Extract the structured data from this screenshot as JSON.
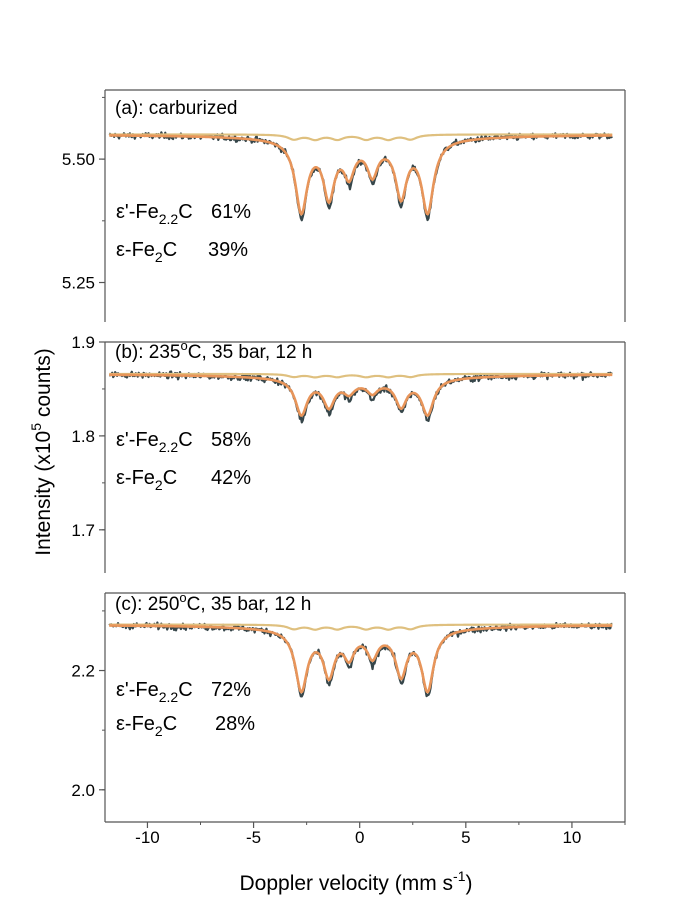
{
  "chart_data": {
    "type": "line",
    "xlabel": "Doppler velocity (mm s",
    "xlabel_sup": "-1",
    "xlabel_close": ")",
    "ylabel": "Intensity (x10",
    "ylabel_sup": "5",
    "ylabel_tail": " counts)",
    "xlim": [
      -12,
      12.5
    ],
    "x_ticks": [
      -10,
      -5,
      0,
      5,
      10
    ],
    "x_tick_labels": [
      "-10",
      "-5",
      "0",
      "5",
      "10"
    ],
    "colors": {
      "data": "#36464a",
      "fit_total": "#e8955a",
      "fit_component": "#dfc07f"
    },
    "panels": [
      {
        "label": "(a): carburized",
        "ylim": [
          5.17,
          5.64
        ],
        "y_ticks": [
          5.25,
          5.5
        ],
        "y_tick_labels": [
          "5.25",
          "5.50"
        ],
        "baseline": 5.55,
        "components": [
          {
            "pre": "ε'-Fe",
            "sub": "2.2",
            "post": "C",
            "pct": "61%"
          },
          {
            "pre": "ε-Fe",
            "sub": "2",
            "post": "C",
            "pct": "39%"
          }
        ],
        "peaks": [
          {
            "x": -2.75,
            "depth": 0.305,
            "width": 0.34
          },
          {
            "x": -1.45,
            "depth": 0.23,
            "width": 0.32
          },
          {
            "x": -0.5,
            "depth": 0.13,
            "width": 0.3
          },
          {
            "x": 0.6,
            "depth": 0.13,
            "width": 0.3
          },
          {
            "x": 1.95,
            "depth": 0.23,
            "width": 0.32
          },
          {
            "x": 3.2,
            "depth": 0.305,
            "width": 0.34
          }
        ],
        "sextet_depth": 0.02
      },
      {
        "label": "(b): 235",
        "label_sup": "o",
        "label_tail": "C, 35 bar, 12 h",
        "ylim": [
          1.654,
          1.9
        ],
        "y_ticks": [
          1.7,
          1.8,
          1.9
        ],
        "y_tick_labels": [
          "1.7",
          "1.8",
          "1.9"
        ],
        "baseline": 1.866,
        "components": [
          {
            "pre": "ε'-Fe",
            "sub": "2.2",
            "post": "C",
            "pct": "58%"
          },
          {
            "pre": "ε-Fe",
            "sub": "2",
            "post": "C",
            "pct": "42%"
          }
        ],
        "peaks": [
          {
            "x": -2.75,
            "depth": 0.152,
            "width": 0.34
          },
          {
            "x": -1.45,
            "depth": 0.11,
            "width": 0.32
          },
          {
            "x": -0.5,
            "depth": 0.046,
            "width": 0.3
          },
          {
            "x": 0.6,
            "depth": 0.046,
            "width": 0.3
          },
          {
            "x": 1.95,
            "depth": 0.11,
            "width": 0.32
          },
          {
            "x": 3.2,
            "depth": 0.152,
            "width": 0.34
          }
        ],
        "sextet_depth": 0.012
      },
      {
        "label": "(c): 250",
        "label_sup": "o",
        "label_tail": "C, 35 bar, 12 h",
        "ylim": [
          1.946,
          2.33
        ],
        "y_ticks": [
          2.0,
          2.2
        ],
        "y_tick_labels": [
          "2.0",
          "2.2"
        ],
        "baseline": 2.277,
        "components": [
          {
            "pre": "ε'-Fe",
            "sub": "2.2",
            "post": "C",
            "pct": "72%"
          },
          {
            "pre": "ε-Fe",
            "sub": "2",
            "post": "C",
            "pct": "28%"
          }
        ],
        "peaks": [
          {
            "x": -2.75,
            "depth": 0.26,
            "width": 0.34
          },
          {
            "x": -1.45,
            "depth": 0.185,
            "width": 0.32
          },
          {
            "x": -0.5,
            "depth": 0.1,
            "width": 0.3
          },
          {
            "x": 0.6,
            "depth": 0.1,
            "width": 0.3
          },
          {
            "x": 1.95,
            "depth": 0.185,
            "width": 0.32
          },
          {
            "x": 3.2,
            "depth": 0.26,
            "width": 0.34
          }
        ],
        "sextet_depth": 0.018
      }
    ]
  }
}
